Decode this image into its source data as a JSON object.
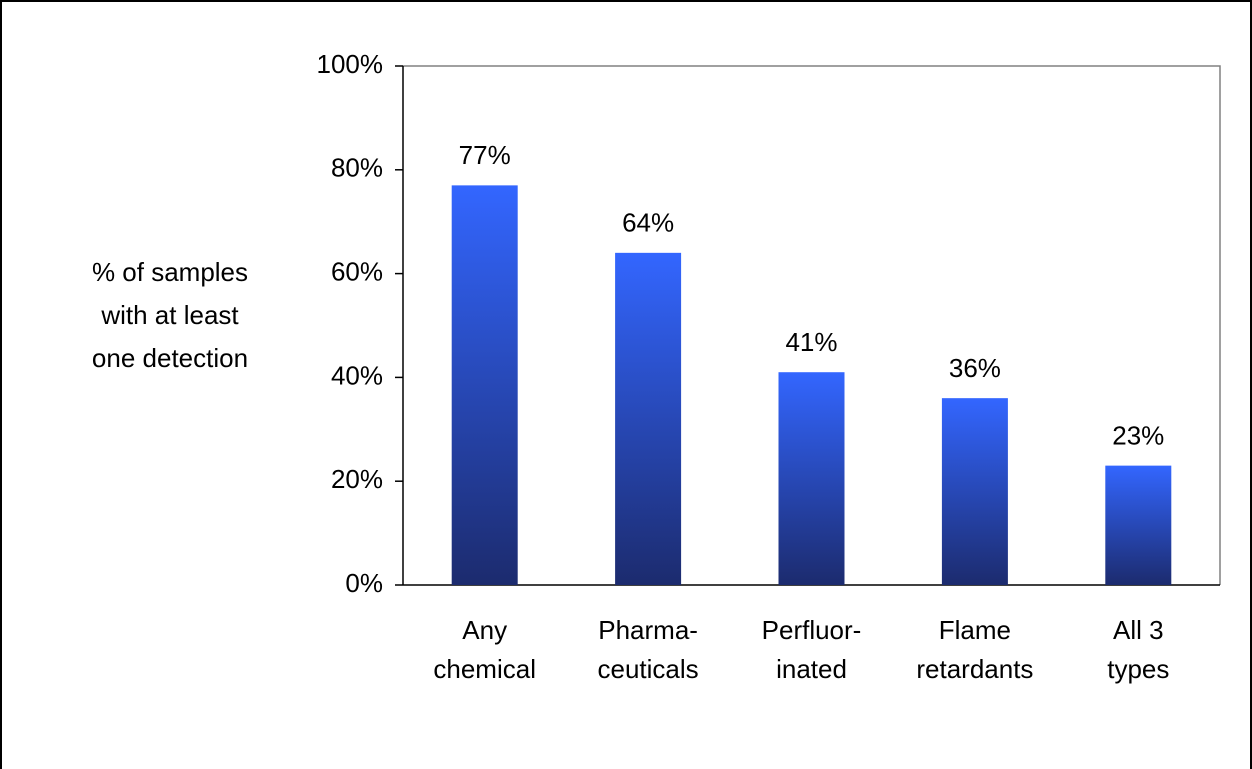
{
  "chart_data": {
    "type": "bar",
    "y_label": [
      "% of samples",
      "with at least",
      "one detection"
    ],
    "categories": [
      [
        "Any",
        "chemical"
      ],
      [
        "Pharma-",
        "ceuticals"
      ],
      [
        "Perfluor-",
        "inated"
      ],
      [
        "Flame",
        "retardants"
      ],
      [
        "All 3",
        "types"
      ]
    ],
    "values": [
      77,
      64,
      41,
      36,
      23
    ],
    "value_labels": [
      "77%",
      "64%",
      "41%",
      "36%",
      "23%"
    ],
    "color": "#3366ff",
    "gradient_end": "#1c2b6e",
    "ylim": [
      0,
      100
    ],
    "yticks": [
      {
        "value": 0,
        "label": "0%"
      },
      {
        "value": 20,
        "label": "20%"
      },
      {
        "value": 40,
        "label": "40%"
      },
      {
        "value": 60,
        "label": "60%"
      },
      {
        "value": 80,
        "label": "80%"
      },
      {
        "value": 100,
        "label": "100%"
      }
    ],
    "grid": false
  }
}
